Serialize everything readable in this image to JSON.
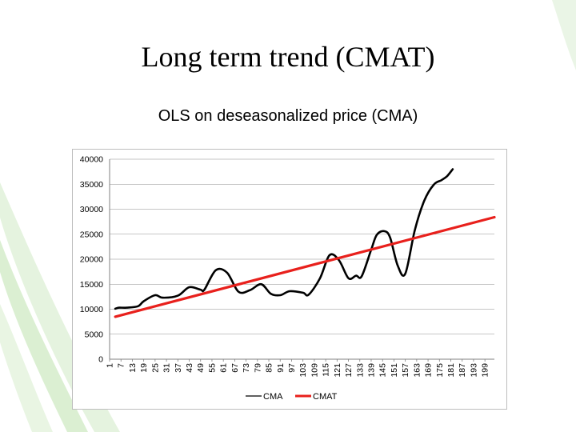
{
  "slide": {
    "title": "Long term trend (CMAT)"
  },
  "chart_data": {
    "type": "line",
    "title": "OLS on deseasonalized price (CMA)",
    "xlabel": "",
    "ylabel": "",
    "ylim": [
      0,
      40000
    ],
    "yticks": [
      0,
      5000,
      10000,
      15000,
      20000,
      25000,
      30000,
      35000,
      40000
    ],
    "xticks": [
      1,
      7,
      13,
      19,
      25,
      31,
      37,
      43,
      49,
      55,
      61,
      67,
      73,
      79,
      85,
      91,
      97,
      103,
      109,
      115,
      121,
      127,
      133,
      139,
      145,
      151,
      157,
      163,
      169,
      175,
      181,
      187,
      193,
      199
    ],
    "xlim": [
      1,
      204
    ],
    "grid": true,
    "legend": "bottom-center",
    "series": [
      {
        "name": "CMA",
        "color": "#000000",
        "x": [
          4,
          6,
          10,
          16,
          19,
          25,
          29,
          37,
          43,
          49,
          51,
          57,
          63,
          69,
          75,
          81,
          86,
          91,
          96,
          103,
          106,
          112,
          117,
          122,
          127,
          131,
          134,
          139,
          142,
          146,
          149,
          153,
          157,
          162,
          167,
          172,
          176,
          179,
          182
        ],
        "y": [
          10100,
          10300,
          10300,
          10600,
          11600,
          12800,
          12300,
          12700,
          14400,
          13900,
          13900,
          17800,
          17300,
          13500,
          13800,
          15000,
          13100,
          12800,
          13600,
          13300,
          12900,
          16200,
          20800,
          19800,
          16200,
          16700,
          16600,
          21900,
          24900,
          25600,
          24300,
          18700,
          17100,
          25800,
          31700,
          34900,
          35800,
          36600,
          38000
        ]
      },
      {
        "name": "CMAT",
        "color": "#e8201c",
        "x": [
          4,
          204
        ],
        "y": [
          8500,
          28400
        ]
      }
    ]
  }
}
